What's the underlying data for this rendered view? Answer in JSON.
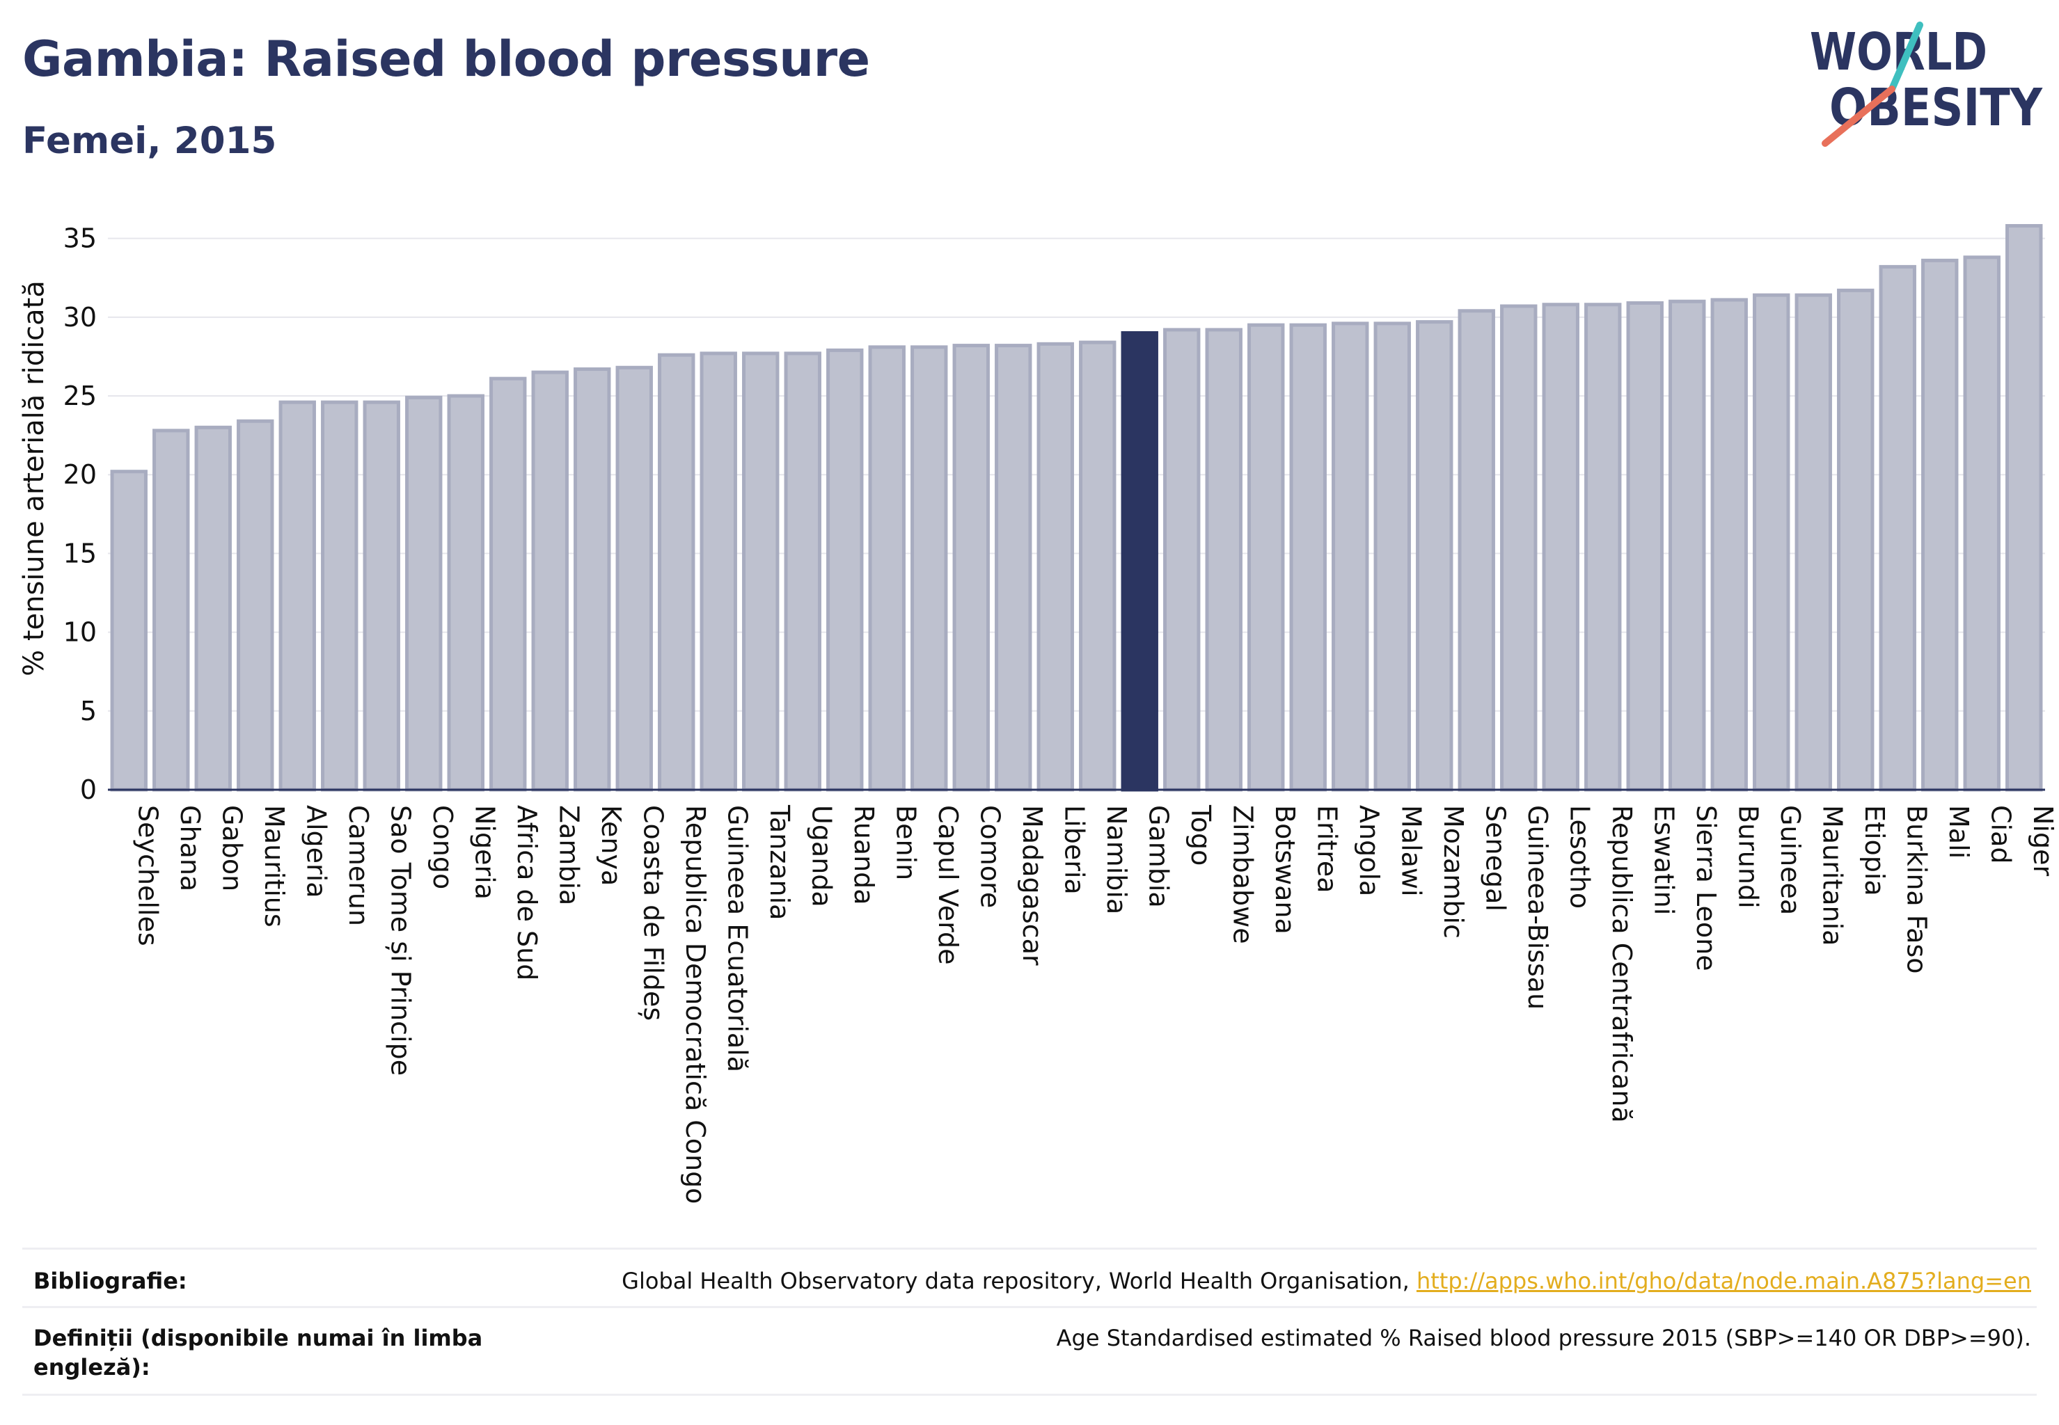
{
  "header": {
    "title": "Gambia: Raised blood pressure",
    "subtitle": "Femei, 2015"
  },
  "logo": {
    "line1": "WORLD",
    "line2": "OBESITY"
  },
  "chart_data": {
    "type": "bar",
    "ylabel": "% tensiune arterială ridicată",
    "ylim": [
      0,
      36
    ],
    "yticks": [
      0,
      5,
      10,
      15,
      20,
      25,
      30,
      35
    ],
    "grid": true,
    "highlight": "Gambia",
    "categories": [
      "Seychelles",
      "Ghana",
      "Gabon",
      "Mauritius",
      "Algeria",
      "Camerun",
      "Sao Tome și Principe",
      "Congo",
      "Nigeria",
      "Africa de Sud",
      "Zambia",
      "Kenya",
      "Coasta de Fildeș",
      "Republica Democratică Congo",
      "Guineea Ecuatorială",
      "Tanzania",
      "Uganda",
      "Ruanda",
      "Benin",
      "Capul Verde",
      "Comore",
      "Madagascar",
      "Liberia",
      "Namibia",
      "Gambia",
      "Togo",
      "Zimbabwe",
      "Botswana",
      "Eritrea",
      "Angola",
      "Malawi",
      "Mozambic",
      "Senegal",
      "Guineea-Bissau",
      "Lesotho",
      "Republica Centrafricană",
      "Eswatini",
      "Sierra Leone",
      "Burundi",
      "Guineea",
      "Mauritania",
      "Etiopia",
      "Burkina Faso",
      "Mali",
      "Ciad",
      "Niger"
    ],
    "values": [
      20.2,
      22.8,
      23.0,
      23.4,
      24.6,
      24.6,
      24.6,
      24.9,
      25.0,
      26.1,
      26.5,
      26.7,
      26.8,
      27.6,
      27.7,
      27.7,
      27.7,
      27.9,
      28.1,
      28.1,
      28.2,
      28.2,
      28.3,
      28.4,
      29.0,
      29.2,
      29.2,
      29.5,
      29.5,
      29.6,
      29.6,
      29.7,
      30.4,
      30.7,
      30.8,
      30.8,
      30.9,
      31.0,
      31.1,
      31.4,
      31.4,
      31.7,
      33.2,
      33.6,
      33.8,
      35.8
    ],
    "colors": {
      "bar": "#bec1cf",
      "bar_edge": "#a8acc0",
      "highlight": "#2b3561",
      "grid": "#e6e6ec",
      "axis": "#2b3561"
    }
  },
  "footer": {
    "bibliography_label": "Bibliografie:",
    "bibliography_text": "Global Health Observatory data repository, World Health Organisation,",
    "bibliography_link": "http://apps.who.int/gho/data/node.main.A875?lang=en",
    "definitions_label_line1": "Definiții (disponibile numai în limba",
    "definitions_label_line2": "engleză):",
    "definitions_text": "Age Standardised estimated % Raised blood pressure 2015 (SBP>=140 OR DBP>=90)."
  },
  "colors": {
    "brand": "#2b3561",
    "accent_teal": "#3fbfbf",
    "accent_coral": "#e8705a",
    "link": "#e3ad1e"
  }
}
